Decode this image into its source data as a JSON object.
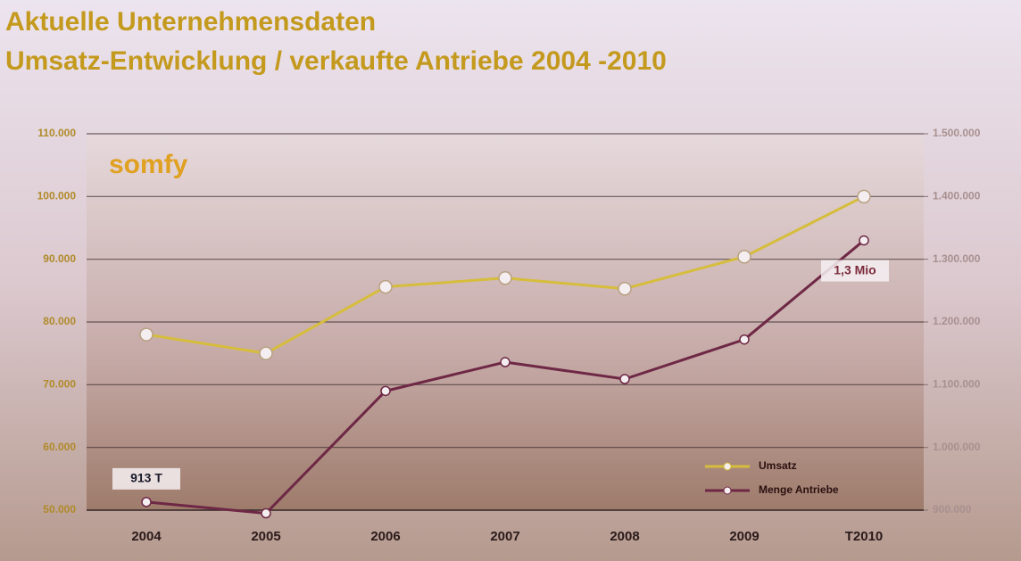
{
  "chart_data": {
    "type": "line",
    "title": "Aktuelle Unternehmensdaten",
    "subtitle": "Umsatz-Entwicklung / verkaufte Antriebe 2004 -2010",
    "logo": "somfy",
    "categories": [
      "2004",
      "2005",
      "2006",
      "2007",
      "2008",
      "2009",
      "T2010"
    ],
    "series": [
      {
        "name": "Umsatz",
        "color": "#d6bd3c",
        "values": [
          78000,
          75000,
          85600,
          87000,
          85300,
          90400,
          100000
        ]
      },
      {
        "name": "Menge Antriebe",
        "color": "#6e2845",
        "axis": "y2",
        "values": [
          913000,
          895000,
          1090000,
          1136000,
          1109000,
          1172000,
          1330000
        ],
        "value_labels": [
          "913 T",
          null,
          null,
          null,
          null,
          null,
          "1,3 Mio"
        ]
      }
    ],
    "ylim": [
      50000,
      110000
    ],
    "yticks": [
      {
        "value": 50000,
        "label": "50.000"
      },
      {
        "value": 60000,
        "label": "60.000"
      },
      {
        "value": 70000,
        "label": "70.000"
      },
      {
        "value": 80000,
        "label": "80.000"
      },
      {
        "value": 90000,
        "label": "90.000"
      },
      {
        "value": 100000,
        "label": "100.000"
      },
      {
        "value": 110000,
        "label": "110.000"
      }
    ],
    "y2lim": [
      900000,
      1500000
    ],
    "y2ticks": [
      {
        "value": 900000,
        "label": "900.000"
      },
      {
        "value": 1000000,
        "label": "1.000.000"
      },
      {
        "value": 1100000,
        "label": "1.100.000"
      },
      {
        "value": 1200000,
        "label": "1.200.000"
      },
      {
        "value": 1300000,
        "label": "1.300.000"
      },
      {
        "value": 1400000,
        "label": "1.400.000"
      },
      {
        "value": 1500000,
        "label": "1.500.000"
      }
    ],
    "grid": true,
    "legend": "lower right"
  }
}
